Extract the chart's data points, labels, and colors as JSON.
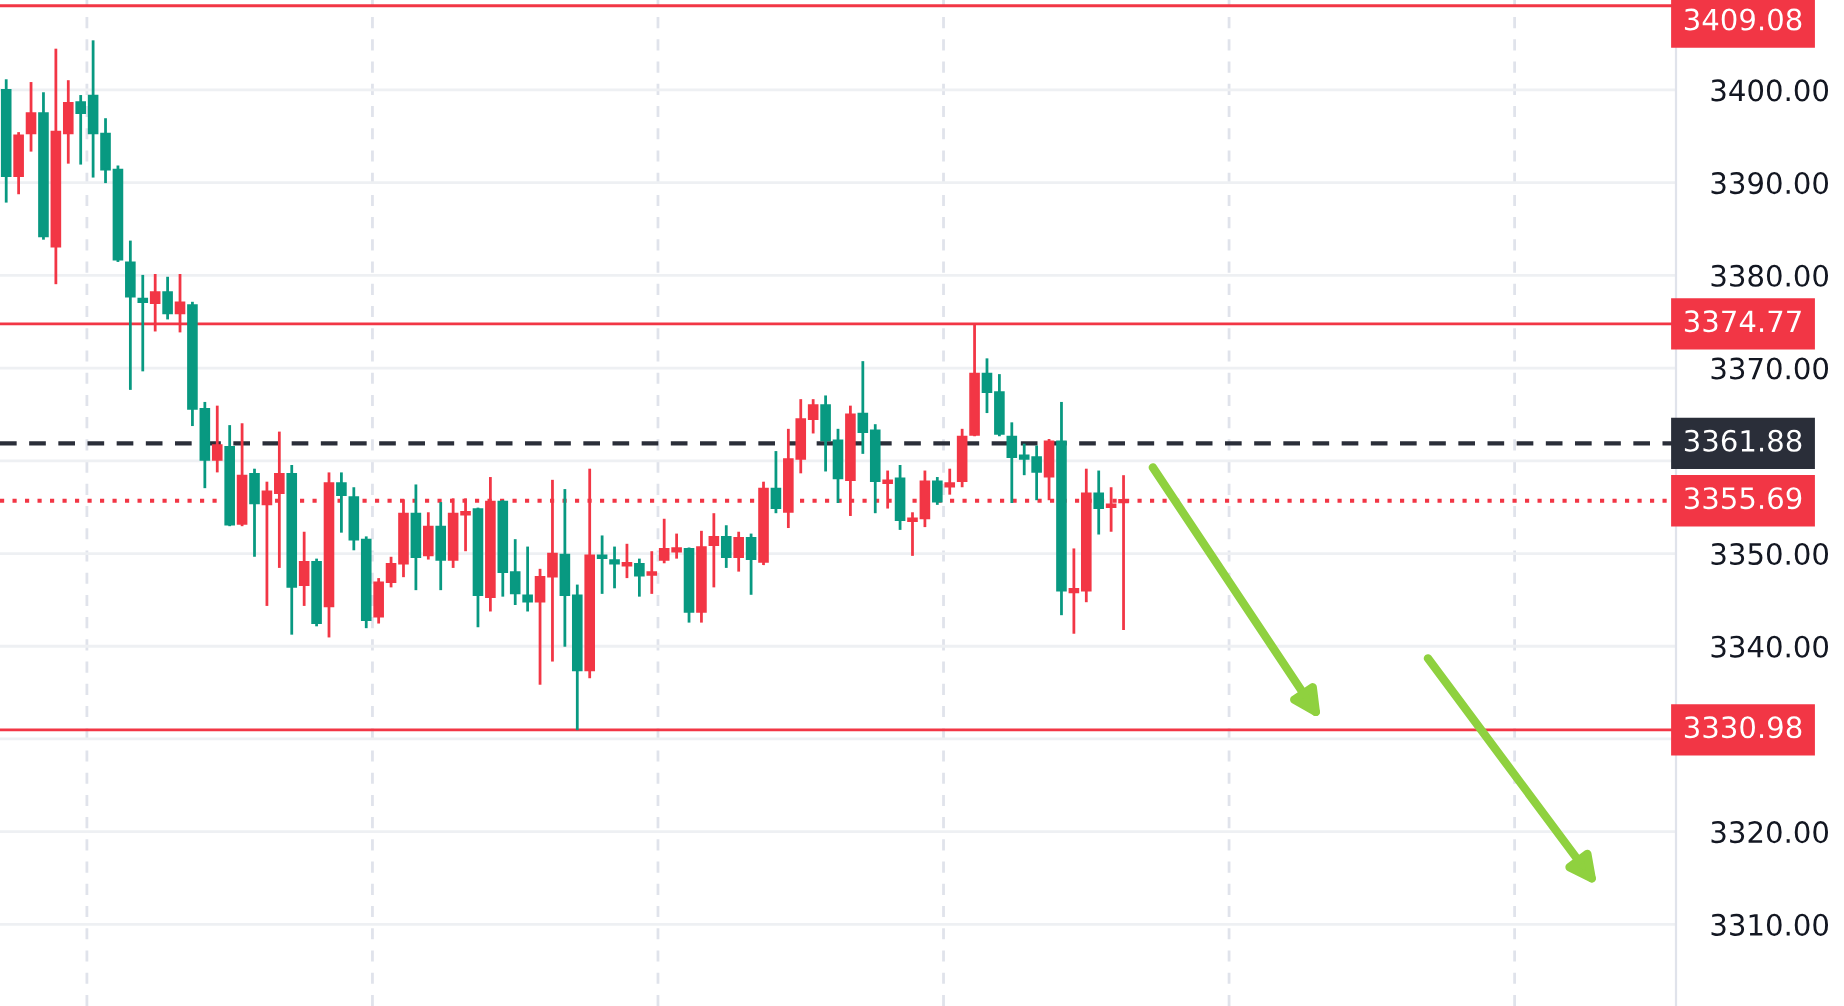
{
  "chart_data": {
    "type": "candlestick",
    "categories": [
      null,
      null,
      null,
      null,
      null,
      null,
      null,
      null,
      null,
      null,
      null,
      null,
      null,
      null,
      null,
      null,
      null,
      null,
      null,
      null,
      null,
      null,
      null,
      null,
      null,
      null,
      null,
      null,
      null,
      null,
      null,
      null,
      null,
      null,
      null,
      null,
      null,
      null,
      null,
      null,
      null,
      null,
      null,
      null,
      null,
      null,
      null,
      null,
      null,
      null,
      null,
      null,
      null,
      null,
      null,
      null,
      null,
      null,
      null,
      null,
      null,
      null,
      null,
      null,
      null,
      null,
      null,
      null,
      null,
      null,
      null,
      null,
      null,
      null,
      null,
      null,
      null,
      null,
      null,
      null,
      null,
      null,
      null,
      null,
      null,
      null,
      null,
      null,
      null,
      null,
      null,
      null,
      null,
      null,
      null,
      null,
      null,
      null,
      null,
      null,
      null,
      null,
      null,
      null,
      null,
      null,
      null,
      null,
      null,
      null,
      null,
      null,
      null,
      null,
      null,
      null,
      null,
      null,
      null,
      null,
      null,
      null,
      null,
      null,
      null,
      null,
      null,
      null,
      null,
      null,
      null,
      null,
      null,
      null,
      null
    ],
    "ohlc": [
      [
        3390.7,
        3401,
        3388,
        3400.0
      ],
      [
        3395.1,
        3395.3,
        3388.9,
        3390.7
      ],
      [
        3397.5,
        3400.7,
        3393.5,
        3395.3
      ],
      [
        3384.2,
        3399.6,
        3384.0,
        3397.5
      ],
      [
        3395.5,
        3404.3,
        3379.2,
        3383.1
      ],
      [
        3398.6,
        3400.9,
        3392.2,
        3395.3
      ],
      [
        3397.5,
        3399.3,
        3392.1,
        3398.7
      ],
      [
        3395.3,
        3405.2,
        3390.7,
        3399.4
      ],
      [
        3391.4,
        3396.8,
        3390.1,
        3395.3
      ],
      [
        3381.7,
        3391.7,
        3381.6,
        3391.4
      ],
      [
        3377.7,
        3383.6,
        3367.8,
        3381.4
      ],
      [
        3377.1,
        3379.9,
        3369.8,
        3377.5
      ],
      [
        3378.2,
        3380.0,
        3374.1,
        3377.0
      ],
      [
        3375.9,
        3379.7,
        3375.4,
        3378.2
      ],
      [
        3377.1,
        3380.0,
        3374.0,
        3375.9
      ],
      [
        3365.6,
        3377.0,
        3363.9,
        3376.8
      ],
      [
        3360.1,
        3366.2,
        3357.2,
        3365.6
      ],
      [
        3361.7,
        3365.8,
        3358.9,
        3360.1
      ],
      [
        3353.1,
        3363.7,
        3353.1,
        3361.5
      ],
      [
        3358.4,
        3363.9,
        3353.1,
        3353.2
      ],
      [
        3355.4,
        3359.0,
        3349.8,
        3358.6
      ],
      [
        3356.7,
        3357.6,
        3344.5,
        3355.3
      ],
      [
        3358.6,
        3363.0,
        3348.6,
        3356.5
      ],
      [
        3346.4,
        3359.4,
        3341.4,
        3358.6
      ],
      [
        3349.1,
        3352.2,
        3344.5,
        3346.6
      ],
      [
        3342.5,
        3349.3,
        3342.3,
        3349.1
      ],
      [
        3357.6,
        3358.6,
        3341.1,
        3344.3
      ],
      [
        3356.3,
        3358.6,
        3352.4,
        3357.6
      ],
      [
        3351.5,
        3357.0,
        3350.5,
        3356.1
      ],
      [
        3342.8,
        3351.7,
        3342.1,
        3351.5
      ],
      [
        3346.9,
        3347.2,
        3342.6,
        3343.2
      ],
      [
        3348.9,
        3349.5,
        3346.5,
        3346.9
      ],
      [
        3354.3,
        3355.7,
        3347.6,
        3348.9
      ],
      [
        3349.6,
        3357.3,
        3346.2,
        3354.3
      ],
      [
        3352.9,
        3354.3,
        3349.5,
        3349.8
      ],
      [
        3349.3,
        3355.4,
        3346.2,
        3352.9
      ],
      [
        3354.3,
        3355.8,
        3348.6,
        3349.3
      ],
      [
        3354.5,
        3355.8,
        3350.4,
        3354.2
      ],
      [
        3345.5,
        3354.8,
        3342.2,
        3354.8
      ],
      [
        3355.6,
        3358.1,
        3343.9,
        3345.3
      ],
      [
        3348.0,
        3355.6,
        3345.5,
        3355.6
      ],
      [
        3345.7,
        3351.4,
        3344.6,
        3348.0
      ],
      [
        3344.8,
        3350.6,
        3343.9,
        3345.5
      ],
      [
        3347.5,
        3348.2,
        3336.0,
        3344.8
      ],
      [
        3350.0,
        3357.8,
        3338.5,
        3347.5
      ],
      [
        3345.5,
        3356.8,
        3340.1,
        3349.9
      ],
      [
        3337.4,
        3346.5,
        3331.1,
        3345.5
      ],
      [
        3349.8,
        3359.0,
        3336.7,
        3337.4
      ],
      [
        3349.5,
        3351.8,
        3345.8,
        3349.8
      ],
      [
        3348.9,
        3350.6,
        3346.4,
        3349.3
      ],
      [
        3349.0,
        3350.9,
        3347.5,
        3348.7
      ],
      [
        3347.6,
        3349.3,
        3345.5,
        3348.9
      ],
      [
        3348.0,
        3350.1,
        3345.8,
        3347.7
      ],
      [
        3350.5,
        3353.6,
        3349.1,
        3349.3
      ],
      [
        3350.6,
        3352.0,
        3349.6,
        3350.2
      ],
      [
        3343.7,
        3350.5,
        3342.7,
        3350.5
      ],
      [
        3350.7,
        3352.3,
        3342.7,
        3343.7
      ],
      [
        3351.8,
        3354.2,
        3346.5,
        3350.9
      ],
      [
        3349.6,
        3352.9,
        3348.6,
        3351.8
      ],
      [
        3351.7,
        3352.2,
        3348.2,
        3349.6
      ],
      [
        3349.4,
        3352.0,
        3345.7,
        3351.7
      ],
      [
        3357.0,
        3357.6,
        3348.9,
        3349.1
      ],
      [
        3354.9,
        3360.9,
        3354.5,
        3357.0
      ],
      [
        3360.2,
        3363.3,
        3352.9,
        3354.5
      ],
      [
        3364.5,
        3366.5,
        3358.8,
        3360.2
      ],
      [
        3366.0,
        3366.5,
        3363.1,
        3364.5
      ],
      [
        3362.2,
        3366.9,
        3359.0,
        3366.0
      ],
      [
        3358.1,
        3363.3,
        3355.6,
        3362.2
      ],
      [
        3365.0,
        3365.8,
        3354.2,
        3357.9
      ],
      [
        3363.1,
        3370.6,
        3360.9,
        3365.1
      ],
      [
        3357.8,
        3363.8,
        3354.5,
        3363.3
      ],
      [
        3357.9,
        3358.8,
        3355.0,
        3357.6
      ],
      [
        3353.6,
        3359.4,
        3352.7,
        3358.1
      ],
      [
        3353.8,
        3354.3,
        3349.9,
        3353.5
      ],
      [
        3357.8,
        3358.8,
        3353.0,
        3353.8
      ],
      [
        3355.6,
        3358.1,
        3355.4,
        3357.8
      ],
      [
        3357.6,
        3359.0,
        3356.5,
        3357.2
      ],
      [
        3362.6,
        3363.3,
        3357.3,
        3357.8
      ],
      [
        3369.4,
        3374.6,
        3362.8,
        3362.8
      ],
      [
        3367.4,
        3370.9,
        3365.3,
        3369.4
      ],
      [
        3362.9,
        3369.2,
        3362.8,
        3367.4
      ],
      [
        3360.4,
        3364.0,
        3355.6,
        3362.6
      ],
      [
        3360.2,
        3361.7,
        3358.6,
        3360.6
      ],
      [
        3358.8,
        3361.5,
        3355.9,
        3360.4
      ],
      [
        3362.1,
        3362.2,
        3355.9,
        3358.3
      ],
      [
        3346.0,
        3366.2,
        3343.5,
        3362.1
      ],
      [
        3346.2,
        3350.4,
        3341.5,
        3345.8
      ],
      [
        3356.5,
        3359.0,
        3344.9,
        3346.0
      ],
      [
        3354.9,
        3358.8,
        3352.2,
        3356.5
      ],
      [
        3355.3,
        3357.0,
        3352.5,
        3355.0
      ],
      [
        3355.8,
        3358.3,
        3341.9,
        3355.5
      ],
      null,
      null,
      null,
      null,
      null,
      null,
      null,
      null,
      null,
      null,
      null,
      null,
      null,
      null,
      null,
      null,
      null,
      null,
      null,
      null,
      null,
      null,
      null,
      null,
      null,
      null,
      null,
      null,
      null,
      null,
      null,
      null,
      null,
      null,
      null,
      null,
      null,
      null,
      null,
      null,
      null,
      null,
      null,
      null
    ],
    "colors": [
      "#089981",
      "#f23645",
      "#f23645",
      "#089981",
      "#f23645",
      "#f23645",
      "#089981",
      "#089981",
      "#089981",
      "#089981",
      "#089981",
      "#089981",
      "#f23645",
      "#089981",
      "#f23645",
      "#089981",
      "#089981",
      "#f23645",
      "#089981",
      "#f23645",
      "#089981",
      "#f23645",
      "#f23645",
      "#089981",
      "#f23645",
      "#089981",
      "#f23645",
      "#089981",
      "#089981",
      "#089981",
      "#f23645",
      "#f23645",
      "#f23645",
      "#089981",
      "#f23645",
      "#089981",
      "#f23645",
      "#f23645",
      "#089981",
      "#f23645",
      "#089981",
      "#089981",
      "#089981",
      "#f23645",
      "#f23645",
      "#089981",
      "#089981",
      "#f23645",
      "#089981",
      "#089981",
      "#f23645",
      "#089981",
      "#f23645",
      "#f23645",
      "#f23645",
      "#089981",
      "#f23645",
      "#f23645",
      "#089981",
      "#f23645",
      "#089981",
      "#f23645",
      "#089981",
      "#f23645",
      "#f23645",
      "#f23645",
      "#089981",
      "#089981",
      "#f23645",
      "#089981",
      "#089981",
      "#f23645",
      "#089981",
      "#f23645",
      "#f23645",
      "#089981",
      "#f23645",
      "#f23645",
      "#f23645",
      "#089981",
      "#089981",
      "#089981",
      "#089981",
      "#089981",
      "#f23645",
      "#089981",
      "#f23645",
      "#f23645",
      "#089981",
      "#f23645",
      "#f23645",
      null,
      null,
      null,
      null,
      null,
      null,
      null,
      null,
      null,
      null,
      null,
      null,
      null,
      null,
      null,
      null,
      null,
      null,
      null,
      null,
      null,
      null,
      null,
      null,
      null,
      null,
      null,
      null,
      null,
      null,
      null,
      null,
      null,
      null,
      null,
      null,
      null,
      null,
      null,
      null,
      null,
      null,
      null,
      null
    ],
    "ylim": [
      3301.2,
      3409.7
    ],
    "yticks": [
      {
        "value": 3310,
        "label": "3310.00"
      },
      {
        "value": 3320,
        "label": "3320.00"
      },
      {
        "value": 3330,
        "label": null
      },
      {
        "value": 3340,
        "label": "3340.00"
      },
      {
        "value": 3350,
        "label": "3350.00"
      },
      {
        "value": 3360,
        "label": null
      },
      {
        "value": 3370,
        "label": "3370.00"
      },
      {
        "value": 3380,
        "label": "3380.00"
      },
      {
        "value": 3390,
        "label": "3390.00"
      },
      {
        "value": 3400,
        "label": "3400.00"
      }
    ],
    "grid": "y",
    "tick_labels": "y",
    "ref_lines": [
      {
        "axis": "y",
        "value": 3409.08,
        "label": "3409.08",
        "color": "#f23645",
        "line_style": "solid"
      },
      {
        "axis": "y",
        "value": 3374.77,
        "label": "3374.77",
        "color": "#f23645",
        "line_style": "solid"
      },
      {
        "axis": "y",
        "value": 3361.88,
        "label": "3361.88",
        "color": "#2a2e39",
        "line_style": "dashed"
      },
      {
        "axis": "y",
        "value": 3355.69,
        "label": "3355.69",
        "color": "#f23645",
        "line_style": "dotted"
      },
      {
        "axis": "y",
        "value": 3330.98,
        "label": "3330.98",
        "color": "#f23645",
        "line_style": "solid"
      }
    ]
  }
}
